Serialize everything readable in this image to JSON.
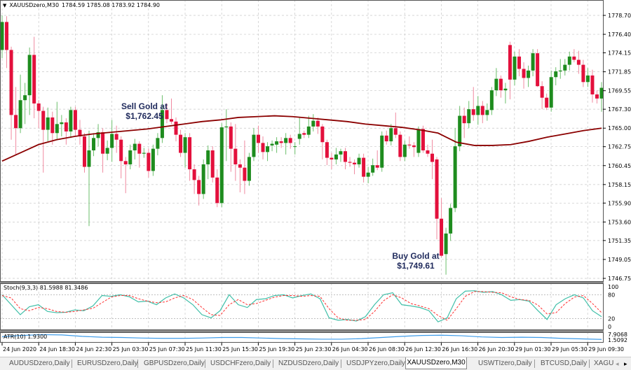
{
  "header": {
    "symbol": "XAUUSDzero,M30",
    "ohlc": "1784.59 1785.08 1783.92 1784.90"
  },
  "annotations": {
    "sell": {
      "line1": "Sell Gold at",
      "line2": "$1,762.45"
    },
    "buy": {
      "line1": "Buy Gold at",
      "line2": "$1,749.61"
    }
  },
  "indicators": {
    "stoch_label": "Stoch(9,3,3) 81.5988 81.3486",
    "atr_label": "ATR(10) 1.9300"
  },
  "colors": {
    "bull": "#1e8c1e",
    "bear": "#e3103c",
    "bull_wick": "#6cbf6c",
    "bear_wick": "#f08aa0",
    "ma": "#8b0000",
    "stoch_main": "#3fbfa8",
    "stoch_signal": "#ff3030",
    "atr": "#3d9be9",
    "grid": "#c8c8c8"
  },
  "tabs": [
    {
      "label": "AUDUSDzero,Daily",
      "active": false
    },
    {
      "label": "EURUSDzero,Daily",
      "active": false
    },
    {
      "label": "GBPUSDzero,Daily",
      "active": false
    },
    {
      "label": "USDCHFzero,Daily",
      "active": false
    },
    {
      "label": "NZDUSDzero,Daily",
      "active": false
    },
    {
      "label": "USDJPYzero,Daily",
      "active": false
    },
    {
      "label": "XAUUSDzero,M30",
      "active": true
    },
    {
      "label": "USWTIzero,Daily",
      "active": false
    },
    {
      "label": "BTCUSD,Daily",
      "active": false
    },
    {
      "label": "XAGU",
      "active": false
    }
  ],
  "tab_scroll": {
    "left": "◂",
    "right": "▸"
  },
  "chart_data": {
    "type": "candlestick",
    "price_axis": [
      "1778.70",
      "1776.40",
      "1774.15",
      "1771.85",
      "1769.55",
      "1767.30",
      "1765.00",
      "1762.75",
      "1760.45",
      "1758.15",
      "1755.90",
      "1753.60",
      "1751.35",
      "1749.05",
      "1746.75"
    ],
    "ylim": [
      1746.75,
      1778.7
    ],
    "time_axis": [
      "24 Jun 2020",
      "24 Jun 18:30",
      "24 Jun 22:30",
      "25 Jun 03:30",
      "25 Jun 07:30",
      "25 Jun 11:30",
      "25 Jun 15:30",
      "25 Jun 19:30",
      "25 Jun 23:30",
      "26 Jun 04:30",
      "26 Jun 08:30",
      "26 Jun 12:30",
      "26 Jun 16:30",
      "26 Jun 20:30",
      "29 Jun 01:30",
      "29 Jun 05:30",
      "29 Jun 09:30"
    ],
    "grid": true,
    "ohlc": [
      [
        1774.5,
        1778.7,
        1773.5,
        1777.9
      ],
      [
        1777.9,
        1778.6,
        1772.3,
        1774.5
      ],
      [
        1774.5,
        1774.9,
        1763.6,
        1766.6
      ],
      [
        1766.6,
        1770.0,
        1761.7,
        1765.0
      ],
      [
        1765.0,
        1771.5,
        1764.4,
        1768.4
      ],
      [
        1768.4,
        1770.5,
        1765.5,
        1769.0
      ],
      [
        1769.0,
        1774.8,
        1766.6,
        1773.9
      ],
      [
        1773.9,
        1776.1,
        1766.2,
        1768.0
      ],
      [
        1768.0,
        1768.4,
        1765.0,
        1767.1
      ],
      [
        1767.1,
        1767.6,
        1759.6,
        1764.8
      ],
      [
        1764.8,
        1767.5,
        1763.4,
        1766.3
      ],
      [
        1766.3,
        1767.0,
        1763.0,
        1764.4
      ],
      [
        1764.4,
        1768.2,
        1763.6,
        1765.5
      ],
      [
        1765.5,
        1766.6,
        1764.0,
        1765.7
      ],
      [
        1765.7,
        1766.2,
        1763.0,
        1764.6
      ],
      [
        1764.6,
        1767.6,
        1763.8,
        1767.2
      ],
      [
        1767.2,
        1767.6,
        1764.0,
        1764.8
      ],
      [
        1764.8,
        1766.0,
        1763.0,
        1764.0
      ],
      [
        1764.0,
        1764.4,
        1759.6,
        1760.3
      ],
      [
        1760.3,
        1764.7,
        1753.1,
        1762.3
      ],
      [
        1762.3,
        1764.4,
        1761.6,
        1763.8
      ],
      [
        1763.8,
        1765.5,
        1762.8,
        1764.5
      ],
      [
        1764.5,
        1765.0,
        1759.6,
        1761.9
      ],
      [
        1761.9,
        1763.5,
        1761.1,
        1762.6
      ],
      [
        1762.6,
        1766.0,
        1760.9,
        1764.3
      ],
      [
        1764.3,
        1765.3,
        1762.0,
        1763.6
      ],
      [
        1763.6,
        1764.0,
        1758.9,
        1761.0
      ],
      [
        1761.0,
        1761.5,
        1757.1,
        1760.6
      ],
      [
        1760.6,
        1763.0,
        1760.0,
        1762.3
      ],
      [
        1762.3,
        1763.7,
        1761.2,
        1763.1
      ],
      [
        1763.1,
        1763.4,
        1760.2,
        1761.9
      ],
      [
        1761.9,
        1762.6,
        1761.4,
        1762.0
      ],
      [
        1762.0,
        1762.5,
        1759.0,
        1759.8
      ],
      [
        1759.8,
        1763.0,
        1759.2,
        1762.5
      ],
      [
        1762.5,
        1764.4,
        1761.7,
        1763.8
      ],
      [
        1763.8,
        1769.0,
        1763.2,
        1767.2
      ],
      [
        1767.2,
        1768.0,
        1765.6,
        1766.1
      ],
      [
        1766.1,
        1768.6,
        1765.5,
        1765.8
      ],
      [
        1765.8,
        1766.3,
        1763.4,
        1764.2
      ],
      [
        1764.2,
        1764.8,
        1761.5,
        1762.0
      ],
      [
        1762.0,
        1764.4,
        1760.2,
        1763.9
      ],
      [
        1763.9,
        1764.4,
        1758.6,
        1760.0
      ],
      [
        1760.0,
        1760.6,
        1757.0,
        1758.7
      ],
      [
        1758.7,
        1759.2,
        1755.6,
        1757.0
      ],
      [
        1757.0,
        1761.2,
        1756.4,
        1760.6
      ],
      [
        1760.6,
        1762.9,
        1758.8,
        1762.3
      ],
      [
        1762.3,
        1762.8,
        1758.4,
        1759.0
      ],
      [
        1759.0,
        1760.0,
        1755.4,
        1755.9
      ],
      [
        1755.9,
        1765.6,
        1755.4,
        1765.1
      ],
      [
        1765.1,
        1767.3,
        1761.0,
        1765.2
      ],
      [
        1765.2,
        1765.7,
        1759.7,
        1762.5
      ],
      [
        1762.5,
        1765.5,
        1758.6,
        1760.6
      ],
      [
        1760.6,
        1761.2,
        1757.2,
        1760.2
      ],
      [
        1760.2,
        1763.5,
        1757.0,
        1758.6
      ],
      [
        1758.6,
        1762.0,
        1758.0,
        1761.5
      ],
      [
        1761.5,
        1765.0,
        1761.0,
        1764.2
      ],
      [
        1764.2,
        1765.3,
        1762.0,
        1763.2
      ],
      [
        1763.2,
        1764.0,
        1761.2,
        1762.1
      ],
      [
        1762.1,
        1763.3,
        1761.0,
        1762.8
      ],
      [
        1762.9,
        1763.5,
        1762.2,
        1763.1
      ],
      [
        1763.0,
        1763.9,
        1762.0,
        1763.4
      ],
      [
        1763.4,
        1763.9,
        1762.6,
        1763.2
      ],
      [
        1763.2,
        1764.4,
        1761.8,
        1763.8
      ],
      [
        1763.8,
        1764.2,
        1762.5,
        1763.2
      ],
      [
        1762.8,
        1763.3,
        1761.8,
        1762.8
      ],
      [
        1763.7,
        1766.3,
        1763.0,
        1764.3
      ],
      [
        1764.4,
        1764.7,
        1763.8,
        1764.2
      ],
      [
        1764.2,
        1766.5,
        1763.8,
        1765.2
      ],
      [
        1765.2,
        1766.7,
        1764.6,
        1765.9
      ],
      [
        1765.9,
        1766.3,
        1764.3,
        1765.2
      ],
      [
        1765.2,
        1765.5,
        1761.2,
        1763.3
      ],
      [
        1763.3,
        1763.6,
        1760.5,
        1761.4
      ],
      [
        1761.4,
        1762.0,
        1760.0,
        1761.2
      ],
      [
        1761.2,
        1762.6,
        1760.6,
        1761.8
      ],
      [
        1761.8,
        1762.5,
        1760.9,
        1762.2
      ],
      [
        1762.2,
        1762.6,
        1760.0,
        1760.9
      ],
      [
        1760.9,
        1761.5,
        1760.3,
        1760.8
      ],
      [
        1760.8,
        1761.2,
        1759.4,
        1760.6
      ],
      [
        1760.6,
        1761.9,
        1760.2,
        1761.4
      ],
      [
        1761.4,
        1761.9,
        1758.4,
        1759.1
      ],
      [
        1759.1,
        1760.3,
        1758.3,
        1759.6
      ],
      [
        1759.6,
        1761.3,
        1759.2,
        1760.5
      ],
      [
        1760.5,
        1762.3,
        1759.9,
        1760.2
      ],
      [
        1760.2,
        1764.6,
        1759.7,
        1764.1
      ],
      [
        1764.1,
        1764.7,
        1763.0,
        1763.4
      ],
      [
        1763.4,
        1765.5,
        1762.9,
        1765.0
      ],
      [
        1765.0,
        1766.9,
        1763.8,
        1764.2
      ],
      [
        1764.2,
        1764.6,
        1761.0,
        1761.5
      ],
      [
        1761.5,
        1763.5,
        1761.0,
        1763.0
      ],
      [
        1763.0,
        1764.0,
        1762.5,
        1762.9
      ],
      [
        1762.9,
        1763.3,
        1761.5,
        1762.7
      ],
      [
        1762.0,
        1765.2,
        1761.5,
        1764.9
      ],
      [
        1764.9,
        1765.3,
        1762.0,
        1762.3
      ],
      [
        1762.3,
        1763.0,
        1761.5,
        1761.9
      ],
      [
        1761.9,
        1763.6,
        1758.8,
        1760.9
      ],
      [
        1761.2,
        1761.5,
        1751.5,
        1754.0
      ],
      [
        1754.0,
        1756.5,
        1749.3,
        1749.5
      ],
      [
        1749.7,
        1752.9,
        1747.2,
        1752.2
      ],
      [
        1752.2,
        1755.8,
        1751.3,
        1755.3
      ],
      [
        1755.3,
        1765.0,
        1754.8,
        1762.8
      ],
      [
        1762.8,
        1767.7,
        1762.2,
        1766.5
      ],
      [
        1766.5,
        1767.5,
        1763.8,
        1765.6
      ],
      [
        1765.6,
        1768.3,
        1765.0,
        1767.3
      ],
      [
        1767.3,
        1770.0,
        1765.9,
        1766.6
      ],
      [
        1766.6,
        1768.9,
        1765.4,
        1767.7
      ],
      [
        1767.7,
        1768.3,
        1765.6,
        1766.6
      ],
      [
        1766.6,
        1768.0,
        1765.9,
        1767.2
      ],
      [
        1767.2,
        1770.0,
        1766.6,
        1769.6
      ],
      [
        1769.6,
        1772.3,
        1768.9,
        1771.0
      ],
      [
        1771.0,
        1771.4,
        1768.7,
        1769.6
      ],
      [
        1769.6,
        1770.5,
        1768.0,
        1769.8
      ],
      [
        1775.1,
        1775.5,
        1768.5,
        1770.9
      ],
      [
        1770.9,
        1774.3,
        1770.2,
        1773.7
      ],
      [
        1773.7,
        1774.6,
        1771.3,
        1772.2
      ],
      [
        1772.2,
        1773.0,
        1769.8,
        1771.1
      ],
      [
        1771.1,
        1772.6,
        1770.0,
        1772.0
      ],
      [
        1772.0,
        1774.6,
        1771.3,
        1774.1
      ],
      [
        1774.1,
        1774.6,
        1770.0,
        1770.1
      ],
      [
        1770.1,
        1770.7,
        1767.3,
        1768.7
      ],
      [
        1768.7,
        1769.2,
        1767.2,
        1767.5
      ],
      [
        1767.5,
        1772.0,
        1767.0,
        1771.2
      ],
      [
        1771.2,
        1772.4,
        1770.2,
        1771.9
      ],
      [
        1771.9,
        1773.4,
        1771.0,
        1772.0
      ],
      [
        1772.0,
        1773.4,
        1771.4,
        1772.7
      ],
      [
        1772.7,
        1774.3,
        1772.0,
        1773.7
      ],
      [
        1773.7,
        1774.6,
        1773.0,
        1773.3
      ],
      [
        1773.3,
        1774.4,
        1771.6,
        1772.7
      ],
      [
        1772.7,
        1773.3,
        1770.0,
        1770.6
      ],
      [
        1770.6,
        1772.3,
        1770.0,
        1771.4
      ],
      [
        1771.4,
        1772.1,
        1768.1,
        1769.1
      ],
      [
        1769.1,
        1769.6,
        1768.0,
        1768.6
      ],
      [
        1768.6,
        1770.6,
        1767.0,
        1769.9
      ]
    ],
    "moving_average": [
      1761.0,
      1762.0,
      1763.0,
      1763.6,
      1764.0,
      1764.3,
      1764.5,
      1764.7,
      1764.9,
      1765.2,
      1765.5,
      1765.8,
      1766.0,
      1766.3,
      1766.4,
      1766.5,
      1766.4,
      1766.2,
      1766.0,
      1765.8,
      1765.5,
      1765.3,
      1765.1,
      1764.8,
      1764.4,
      1763.3,
      1762.9,
      1762.9,
      1763.0,
      1763.4,
      1763.9,
      1764.3,
      1764.7,
      1765.0
    ],
    "stochastic": {
      "levels": [
        100,
        80,
        20,
        0
      ],
      "main": [
        80,
        55,
        30,
        50,
        55,
        38,
        35,
        36,
        42,
        40,
        52,
        78,
        76,
        80,
        75,
        62,
        64,
        55,
        72,
        82,
        72,
        55,
        30,
        22,
        40,
        80,
        55,
        48,
        68,
        70,
        78,
        80,
        72,
        78,
        82,
        70,
        22,
        16,
        18,
        14,
        25,
        55,
        80,
        85,
        55,
        52,
        48,
        40,
        12,
        22,
        70,
        89,
        90,
        86,
        88,
        80,
        66,
        68,
        64,
        40,
        18,
        55,
        70,
        80,
        72,
        40,
        25
      ],
      "signal": [
        78,
        72,
        45,
        40,
        48,
        45,
        38,
        36,
        38,
        42,
        46,
        60,
        74,
        78,
        78,
        70,
        64,
        60,
        62,
        72,
        78,
        68,
        48,
        30,
        28,
        55,
        68,
        55,
        58,
        66,
        74,
        78,
        78,
        76,
        78,
        76,
        45,
        22,
        16,
        16,
        18,
        38,
        65,
        80,
        72,
        58,
        52,
        45,
        28,
        16,
        45,
        76,
        88,
        88,
        86,
        85,
        75,
        68,
        66,
        54,
        32,
        35,
        58,
        74,
        78,
        58,
        35
      ]
    },
    "atr": {
      "axis": [
        "7.9068",
        "1.5092"
      ],
      "values": [
        2.9,
        3.3,
        3.6,
        3.5,
        3.0,
        2.7,
        2.6,
        2.4,
        2.3,
        2.3,
        2.4,
        2.6,
        2.6,
        2.4,
        2.2,
        2.1,
        2.0,
        2.0,
        2.2,
        2.6,
        3.0,
        3.3,
        3.4,
        3.2,
        2.8,
        2.6,
        2.7,
        2.6,
        2.3,
        2.1,
        1.93
      ]
    }
  }
}
